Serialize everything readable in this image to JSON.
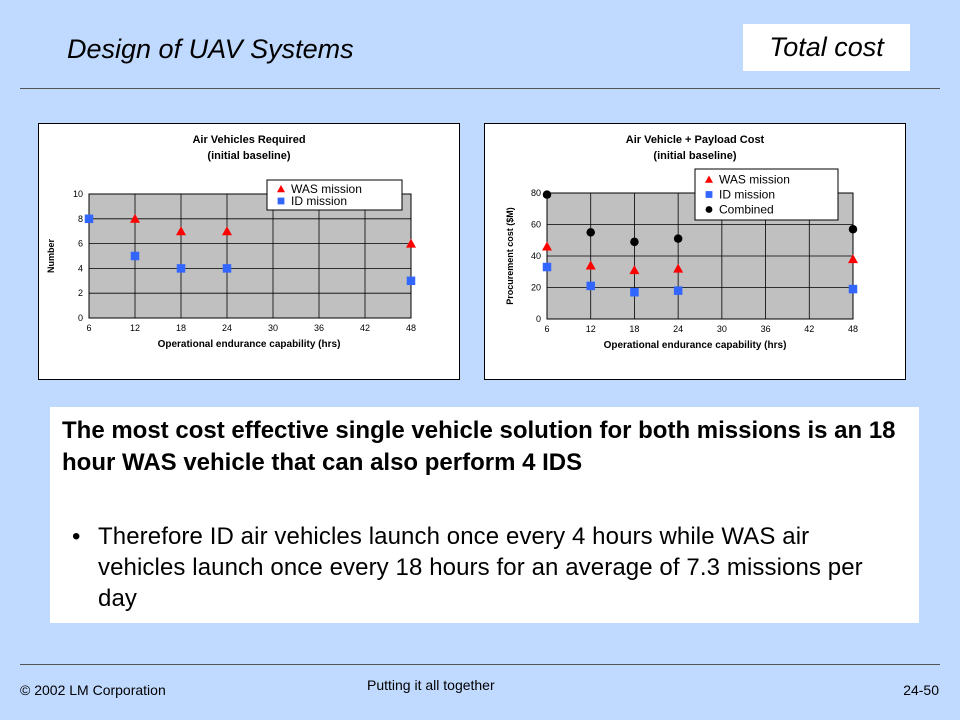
{
  "header": {
    "title": "Design of UAV Systems",
    "badge": "Total cost"
  },
  "chart_data": [
    {
      "type": "scatter",
      "title": "Air Vehicles Required",
      "subtitle": "(initial baseline)",
      "xlabel": "Operational endurance capability (hrs)",
      "ylabel": "Number",
      "xlim": [
        6,
        48
      ],
      "ylim": [
        0,
        10
      ],
      "xticks": [
        6,
        12,
        18,
        24,
        30,
        36,
        42,
        48
      ],
      "yticks": [
        0,
        2,
        4,
        6,
        8,
        10
      ],
      "grid": true,
      "legend_position": "top-right",
      "series": [
        {
          "name": "WAS mission",
          "marker": "triangle",
          "color": "#ff0000",
          "points": [
            [
              12,
              8
            ],
            [
              18,
              7
            ],
            [
              24,
              7
            ],
            [
              48,
              6
            ]
          ]
        },
        {
          "name": "ID mission",
          "marker": "square",
          "color": "#3366ff",
          "points": [
            [
              6,
              8
            ],
            [
              12,
              5
            ],
            [
              18,
              4
            ],
            [
              24,
              4
            ],
            [
              48,
              3
            ]
          ]
        }
      ]
    },
    {
      "type": "scatter",
      "title": "Air Vehicle + Payload Cost",
      "subtitle": "(initial baseline)",
      "xlabel": "Operational endurance capability (hrs)",
      "ylabel": "Procurement cost ($M)",
      "xlim": [
        6,
        48
      ],
      "ylim": [
        0,
        80
      ],
      "xticks": [
        6,
        12,
        18,
        24,
        30,
        36,
        42,
        48
      ],
      "yticks": [
        0,
        20,
        40,
        60,
        80
      ],
      "grid": true,
      "legend_position": "top-right",
      "series": [
        {
          "name": "WAS mission",
          "marker": "triangle",
          "color": "#ff0000",
          "points": [
            [
              6,
              46
            ],
            [
              12,
              34
            ],
            [
              18,
              31
            ],
            [
              24,
              32
            ],
            [
              48,
              38
            ]
          ]
        },
        {
          "name": "ID mission",
          "marker": "square",
          "color": "#3366ff",
          "points": [
            [
              6,
              33
            ],
            [
              12,
              21
            ],
            [
              18,
              17
            ],
            [
              24,
              18
            ],
            [
              48,
              19
            ]
          ]
        },
        {
          "name": "Combined",
          "marker": "circle",
          "color": "#000000",
          "points": [
            [
              6,
              79
            ],
            [
              12,
              55
            ],
            [
              18,
              49
            ],
            [
              24,
              51
            ],
            [
              48,
              57
            ]
          ]
        }
      ]
    }
  ],
  "body": {
    "headline": "The most cost effective single vehicle solution for both missions is an 18 hour WAS vehicle that can also perform 4 IDS",
    "bullet_symbol": "•",
    "bullet": "Therefore ID air vehicles launch once every 4 hours while WAS air vehicles launch once every 18 hours for an average of 7.3 missions per day"
  },
  "footer": {
    "copyright": "© 2002 LM Corporation",
    "center": "Putting it all together",
    "page": "24-50"
  }
}
